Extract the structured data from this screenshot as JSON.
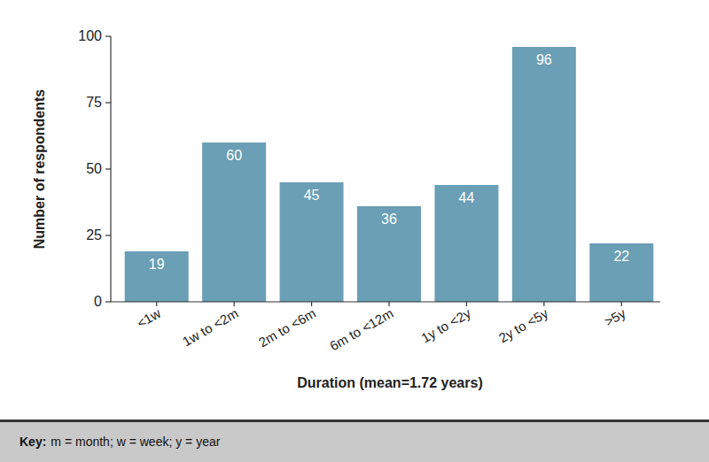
{
  "chart_data": {
    "type": "bar",
    "categories": [
      "<1w",
      "1w to <2m",
      "2m to <6m",
      "6m to <12m",
      "1y to <2y",
      "2y to <5y",
      ">5y"
    ],
    "values": [
      19,
      60,
      45,
      36,
      44,
      96,
      22
    ],
    "color": "#6a9fb5",
    "x_label": "Duration (mean=1.72 years)",
    "y_label": "Number of respondents",
    "ylim": [
      0,
      100
    ],
    "yticks": [
      0,
      25,
      50,
      75,
      100
    ],
    "grid": false,
    "data_labels": true,
    "annotations": [
      {
        "label": "Key:",
        "text": "m = month; w = week; y = year"
      }
    ]
  }
}
